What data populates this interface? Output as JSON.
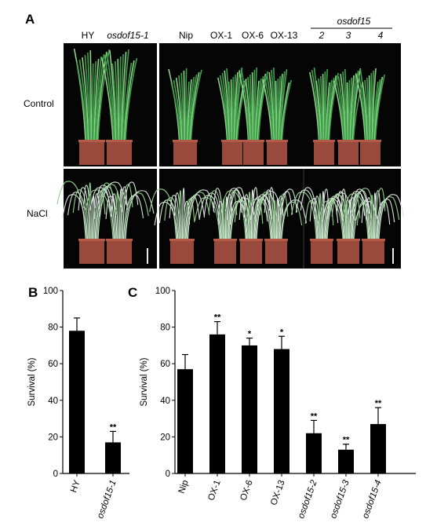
{
  "panel_a": {
    "letter": "A",
    "left_group": [
      "HY",
      "osdof15-1"
    ],
    "right_group": [
      "Nip",
      "OX-1",
      "OX-6",
      "OX-13"
    ],
    "mutant_group_title": "osdof15",
    "mutant_group": [
      "2",
      "3",
      "4"
    ],
    "row_labels": [
      "Control",
      "NaCl"
    ],
    "colors": {
      "photo_bg": "#050505",
      "leaf": "#3fa04a",
      "leaf_light": "#8fd08a",
      "salt_leaf": "#d8e6dc",
      "pot": "#9a4a3c",
      "pot_rim": "#b65a48"
    }
  },
  "chart_data": [
    {
      "type": "bar",
      "panel": "B",
      "categories": [
        "HY",
        "osdof15-1"
      ],
      "values": [
        78,
        17
      ],
      "errors": [
        7,
        6
      ],
      "significance": [
        "",
        "**"
      ],
      "ylabel": "Survival (%)",
      "ylim": [
        0,
        100
      ],
      "yticks": [
        "0",
        "20",
        "40",
        "60",
        "80",
        "100"
      ],
      "bar_color": "#000000",
      "grid": false
    },
    {
      "type": "bar",
      "panel": "C",
      "categories": [
        "Nip",
        "OX-1",
        "OX-6",
        "OX-13",
        "osdof15-2",
        "osdof15-3",
        "osdof15-4"
      ],
      "values": [
        57,
        76,
        70,
        68,
        22,
        13,
        27
      ],
      "errors": [
        8,
        7,
        4,
        7,
        7,
        3,
        9
      ],
      "significance": [
        "",
        "**",
        "*",
        "*",
        "**",
        "**",
        "**"
      ],
      "ylabel": "Survival (%)",
      "ylim": [
        0,
        100
      ],
      "yticks": [
        "0",
        "20",
        "40",
        "60",
        "80",
        "100"
      ],
      "bar_color": "#000000",
      "grid": false
    }
  ]
}
